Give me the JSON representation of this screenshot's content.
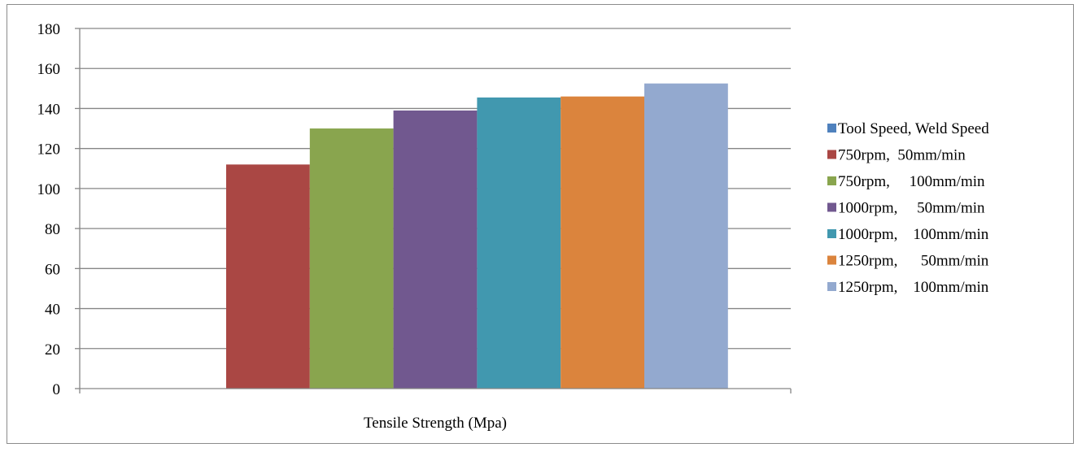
{
  "chart_data": {
    "type": "bar",
    "categories": [
      "Tensile Strength (Mpa)"
    ],
    "xlabel": "Tensile Strength (Mpa)",
    "ylabel": "",
    "title": "",
    "ylim": [
      0,
      180
    ],
    "yticks": [
      0,
      20,
      40,
      60,
      80,
      100,
      120,
      140,
      160,
      180
    ],
    "grid": true,
    "legend_position": "right",
    "series": [
      {
        "name": "Tool Speed, Weld Speed",
        "values": [
          0
        ],
        "color": "#4f81bd"
      },
      {
        "name": "750rpm,  50mm/min",
        "values": [
          112
        ],
        "color": "#aa4744"
      },
      {
        "name": "750rpm,     100mm/min",
        "values": [
          130
        ],
        "color": "#89a54e"
      },
      {
        "name": "1000rpm,     50mm/min",
        "values": [
          139
        ],
        "color": "#71588f"
      },
      {
        "name": "1000rpm,    100mm/min",
        "values": [
          145.5
        ],
        "color": "#4198af"
      },
      {
        "name": "1250rpm,      50mm/min",
        "values": [
          146
        ],
        "color": "#db843d"
      },
      {
        "name": "1250rpm,    100mm/min",
        "values": [
          152.5
        ],
        "color": "#93a9cf"
      }
    ]
  }
}
